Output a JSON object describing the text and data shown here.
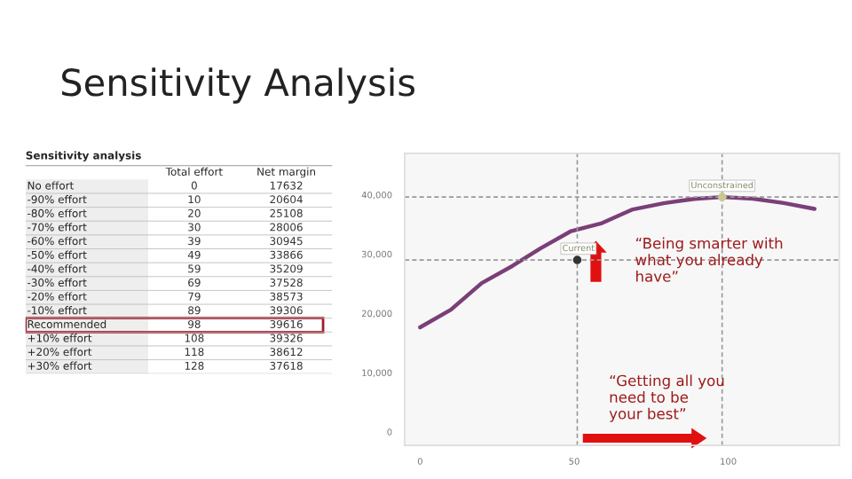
{
  "chart_data": [
    {
      "type": "other",
      "title": "Sensitivity analysis",
      "categories": [
        "No effort",
        "-90% effort",
        "-80% effort",
        "-70% effort",
        "-60% effort",
        "-50% effort",
        "-40% effort",
        "-30% effort",
        "-20% effort",
        "-10% effort",
        "Recommended",
        "+10% effort",
        "+20% effort",
        "+30% effort"
      ],
      "series": [
        {
          "name": "Total effort",
          "values": [
            0,
            10,
            20,
            30,
            39,
            49,
            59,
            69,
            79,
            89,
            98,
            108,
            118,
            128
          ]
        },
        {
          "name": "Net margin",
          "values": [
            17632,
            20604,
            25108,
            28006,
            30945,
            33866,
            35209,
            37528,
            38573,
            39306,
            39616,
            39326,
            38612,
            37618
          ]
        }
      ],
      "data_labels": true
    },
    {
      "type": "line",
      "title": "Sensitivity Analysis",
      "xlim": [
        -5,
        136
      ],
      "ylim": [
        -2300,
        47000
      ],
      "xticks": [
        0,
        50,
        100
      ],
      "yticks": [
        0,
        {
          "value": 10000,
          "label": "10,000"
        },
        {
          "value": 20000,
          "label": "20,000"
        },
        {
          "value": 30000,
          "label": "30,000"
        },
        {
          "value": 40000,
          "label": "40,000"
        }
      ],
      "series": [
        {
          "type": "line",
          "color": "#7b3f78",
          "x": [
            0,
            10,
            20,
            30,
            39,
            49,
            59,
            69,
            79,
            89,
            98,
            108,
            118,
            128
          ],
          "values": [
            17632,
            20604,
            25108,
            28006,
            30945,
            33866,
            35209,
            37528,
            38573,
            39306,
            39616,
            39326,
            38612,
            37618
          ]
        },
        {
          "type": "scatter",
          "colors": [
            "#333333",
            "#c8c890"
          ],
          "x": [
            51,
            98
          ],
          "values": [
            29000,
            39616
          ]
        }
      ],
      "ref_lines": [
        {
          "axis": "y",
          "value": 39616,
          "label": "Unconstrained"
        },
        {
          "axis": "x",
          "value": 98
        },
        {
          "axis": "y",
          "value": 29000,
          "label": "Current"
        },
        {
          "axis": "x",
          "value": 51
        }
      ],
      "annotations": [
        "“Being smarter with\nwhat you already\nhave”",
        "“Getting all you\nneed to be\nyour best”"
      ],
      "grid": false,
      "legend": false
    }
  ]
}
